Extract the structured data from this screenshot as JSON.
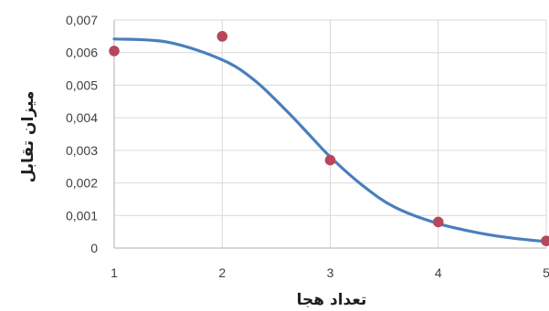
{
  "chart_data": {
    "type": "scatter",
    "title": "",
    "xlabel": "تعداد هجا",
    "ylabel": "میزان تقابل",
    "xlim": [
      1,
      5
    ],
    "ylim": [
      0,
      0.007
    ],
    "x_ticks": [
      "1",
      "2",
      "3",
      "4",
      "5"
    ],
    "y_ticks": [
      "0",
      "0,001",
      "0,002",
      "0,003",
      "0,004",
      "0,005",
      "0,006",
      "0,007"
    ],
    "grid": true,
    "legend": "none",
    "colors": {
      "points": "#b5485a",
      "curve": "#4a7fbd",
      "grid": "#d9d9d9",
      "axis": "#bfbfbf"
    },
    "series": [
      {
        "type": "scatter",
        "x": [
          1,
          2,
          3,
          4,
          5
        ],
        "y": [
          0.00605,
          0.0065,
          0.0027,
          0.0008,
          0.00022
        ]
      },
      {
        "type": "line",
        "smooth": true,
        "x": [
          1,
          1.5,
          2,
          2.3,
          2.6,
          2.8,
          3,
          3.3,
          3.6,
          4,
          4.4,
          4.7,
          5
        ],
        "y": [
          0.00642,
          0.00632,
          0.00578,
          0.00515,
          0.0042,
          0.0035,
          0.0028,
          0.00192,
          0.00125,
          0.00075,
          0.00045,
          0.0003,
          0.0002
        ]
      }
    ]
  }
}
